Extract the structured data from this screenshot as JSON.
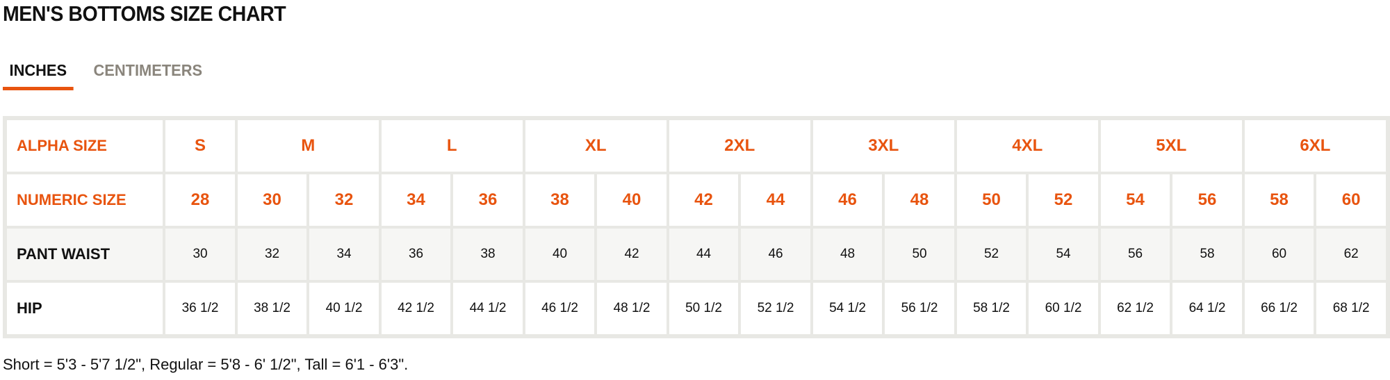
{
  "title": "MEN'S BOTTOMS SIZE CHART",
  "tabs": [
    {
      "label": "INCHES",
      "active": true
    },
    {
      "label": "CENTIMETERS",
      "active": false
    }
  ],
  "colors": {
    "accent": "#e8540f",
    "inactive_tab": "#8a857c",
    "border": "#e8e8e4",
    "stripe": "#f6f6f4"
  },
  "table": {
    "alpha": {
      "label": "ALPHA SIZE",
      "sizes": [
        {
          "label": "S",
          "span": 1
        },
        {
          "label": "M",
          "span": 2
        },
        {
          "label": "L",
          "span": 2
        },
        {
          "label": "XL",
          "span": 2
        },
        {
          "label": "2XL",
          "span": 2
        },
        {
          "label": "3XL",
          "span": 2
        },
        {
          "label": "4XL",
          "span": 2
        },
        {
          "label": "5XL",
          "span": 2
        },
        {
          "label": "6XL",
          "span": 2
        }
      ]
    },
    "numeric": {
      "label": "NUMERIC SIZE",
      "values": [
        "28",
        "30",
        "32",
        "34",
        "36",
        "38",
        "40",
        "42",
        "44",
        "46",
        "48",
        "50",
        "52",
        "54",
        "56",
        "58",
        "60"
      ]
    },
    "waist": {
      "label": "PANT WAIST",
      "values": [
        "30",
        "32",
        "34",
        "36",
        "38",
        "40",
        "42",
        "44",
        "46",
        "48",
        "50",
        "52",
        "54",
        "56",
        "58",
        "60",
        "62"
      ]
    },
    "hip": {
      "label": "HIP",
      "values": [
        "36 1/2",
        "38 1/2",
        "40 1/2",
        "42 1/2",
        "44 1/2",
        "46 1/2",
        "48 1/2",
        "50 1/2",
        "52 1/2",
        "54 1/2",
        "56 1/2",
        "58 1/2",
        "60 1/2",
        "62 1/2",
        "64 1/2",
        "66 1/2",
        "68 1/2"
      ]
    }
  },
  "footnote": "Short = 5'3 - 5'7 1/2\", Regular = 5'8 - 6' 1/2\", Tall = 6'1 - 6'3\"."
}
